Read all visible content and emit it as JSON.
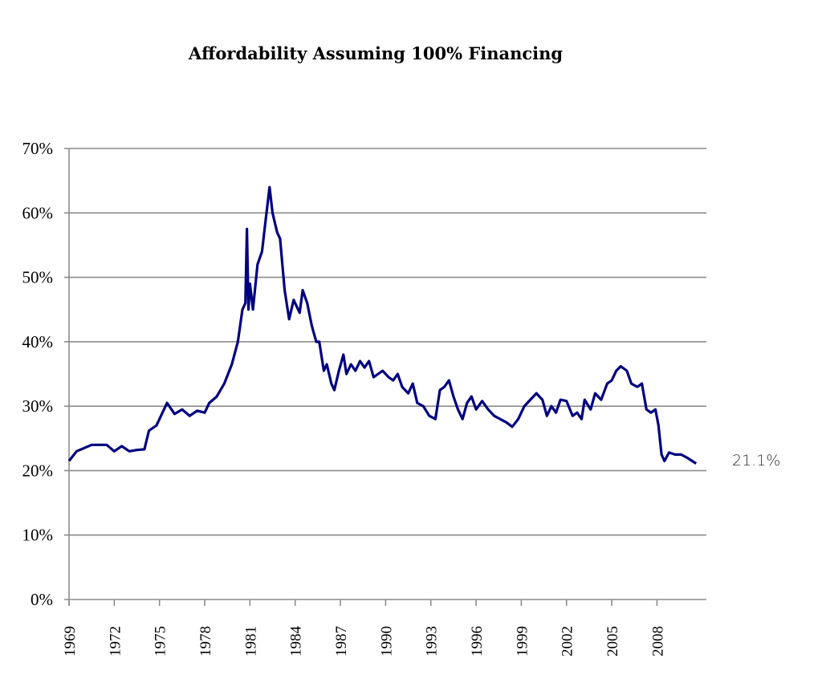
{
  "chart_data": {
    "type": "line",
    "title": "Affordability Assuming 100% Financing",
    "xlabel": "",
    "ylabel": "",
    "ylim": [
      0,
      70
    ],
    "xlim": [
      1969,
      2010.9
    ],
    "y_ticks": [
      "0%",
      "10%",
      "20%",
      "30%",
      "40%",
      "50%",
      "60%",
      "70%"
    ],
    "x_ticks": [
      "1969",
      "1972",
      "1975",
      "1978",
      "1981",
      "1984",
      "1987",
      "1990",
      "1993",
      "1996",
      "1999",
      "2002",
      "2005",
      "2008"
    ],
    "grid": "horizontal",
    "line_color": "#000080",
    "end_label": "21.1%",
    "series": [
      {
        "x": [
          1969.0,
          1969.5,
          1970.0,
          1970.5,
          1971.0,
          1971.5,
          1972.0,
          1972.5,
          1973.0,
          1973.5,
          1974.0,
          1974.3,
          1974.8,
          1975.3,
          1975.5,
          1976.0,
          1976.5,
          1977.0,
          1977.5,
          1978.0,
          1978.3,
          1978.8,
          1979.3,
          1979.8,
          1980.2,
          1980.5,
          1980.7,
          1980.8,
          1980.9,
          1981.0,
          1981.2,
          1981.5,
          1981.8,
          1982.0,
          1982.3,
          1982.5,
          1982.8,
          1983.0,
          1983.3,
          1983.6,
          1983.9,
          1984.3,
          1984.5,
          1984.8,
          1985.1,
          1985.4,
          1985.6,
          1985.9,
          1986.1,
          1986.4,
          1986.6,
          1986.9,
          1987.2,
          1987.4,
          1987.7,
          1988.0,
          1988.3,
          1988.6,
          1988.9,
          1989.2,
          1989.5,
          1989.8,
          1990.2,
          1990.5,
          1990.8,
          1991.1,
          1991.5,
          1991.8,
          1992.1,
          1992.5,
          1992.9,
          1993.3,
          1993.6,
          1993.9,
          1994.2,
          1994.5,
          1994.8,
          1995.1,
          1995.4,
          1995.7,
          1996.0,
          1996.4,
          1996.8,
          1997.2,
          1997.6,
          1998.0,
          1998.4,
          1998.8,
          1999.2,
          1999.6,
          2000.0,
          2000.4,
          2000.7,
          2001.0,
          2001.3,
          2001.6,
          2002.0,
          2002.4,
          2002.7,
          2003.0,
          2003.2,
          2003.6,
          2003.9,
          2004.3,
          2004.7,
          2005.0,
          2005.3,
          2005.6,
          2006.0,
          2006.3,
          2006.7,
          2007.0,
          2007.3,
          2007.6,
          2007.9,
          2008.1,
          2008.3,
          2008.5,
          2008.8,
          2009.2,
          2009.6,
          2010.0,
          2010.6
        ],
        "values": [
          21.5,
          23,
          23.5,
          24,
          24,
          24,
          23,
          23.8,
          23,
          23.2,
          23.3,
          26.2,
          27,
          29.5,
          30.5,
          28.8,
          29.5,
          28.5,
          29.3,
          29,
          30.5,
          31.5,
          33.5,
          36.5,
          40,
          45,
          46,
          57.5,
          45,
          49,
          45,
          52,
          54,
          58,
          64,
          60,
          57,
          56,
          48,
          43.5,
          46.5,
          44.5,
          48,
          46,
          42.5,
          40,
          40,
          35.5,
          36.5,
          33.5,
          32.5,
          35.5,
          38,
          35,
          36.5,
          35.5,
          37,
          36,
          37,
          34.5,
          35,
          35.5,
          34.5,
          34,
          35,
          33,
          32,
          33.5,
          30.5,
          30,
          28.5,
          28,
          32.5,
          33,
          34,
          31.5,
          29.5,
          28,
          30.5,
          31.5,
          29.5,
          30.8,
          29.5,
          28.5,
          28,
          27.5,
          26.8,
          28,
          30,
          31,
          32,
          31,
          28.5,
          30,
          29,
          31,
          30.8,
          28.5,
          29,
          28,
          31,
          29.5,
          32,
          31,
          33.5,
          34,
          35.5,
          36.2,
          35.5,
          33.5,
          33,
          33.5,
          29.5,
          29,
          29.5,
          27,
          22.5,
          21.5,
          22.8,
          22.5,
          22.5,
          22,
          21.1
        ]
      }
    ]
  }
}
